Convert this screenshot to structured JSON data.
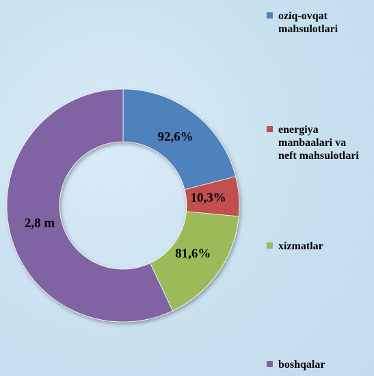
{
  "chart_data": {
    "type": "donut",
    "categories": [
      "oziq-ovqat mahsulotlari",
      "energiya manbaalari va neft mahsulotlari",
      "xizmatlar",
      "boshqalar"
    ],
    "values": [
      21,
      5.5,
      16.5,
      57
    ],
    "slice_labels": [
      "92,6%",
      "10,3%",
      "81,6%",
      "2,8 m"
    ],
    "colors": [
      "#4f81bd",
      "#c0504d",
      "#9bbb59",
      "#8064a2"
    ],
    "legend": "right"
  }
}
